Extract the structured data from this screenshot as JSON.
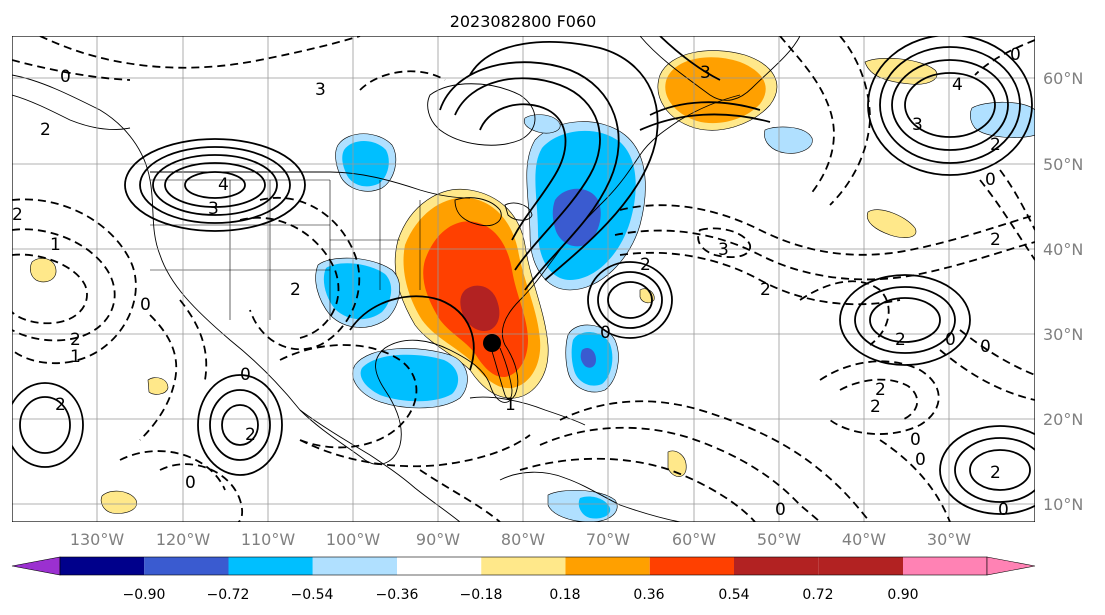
{
  "title": "2023082800 F060",
  "lon_labels": [
    "130°W",
    "120°W",
    "110°W",
    "100°W",
    "90°W",
    "80°W",
    "70°W",
    "60°W",
    "50°W",
    "40°W",
    "30°W"
  ],
  "lat_labels": [
    "60°N",
    "50°N",
    "40°N",
    "30°N",
    "20°N",
    "10°N"
  ],
  "colorbar": {
    "colors": [
      "#9b30d0",
      "#00008b",
      "#3a5bd0",
      "#00bfff",
      "#b0e0ff",
      "#ffffff",
      "#ffe88a",
      "#ffa000",
      "#ff4000",
      "#b22222",
      "#ff82b4"
    ],
    "tick_labels": [
      "−0.90",
      "−0.72",
      "−0.54",
      "−0.36",
      "−0.18",
      "0.18",
      "0.36",
      "0.54",
      "0.72",
      "0.90"
    ]
  },
  "contour_labels": [
    "0",
    "1",
    "2",
    "3",
    "4"
  ],
  "marker": "storm-center-marker"
}
